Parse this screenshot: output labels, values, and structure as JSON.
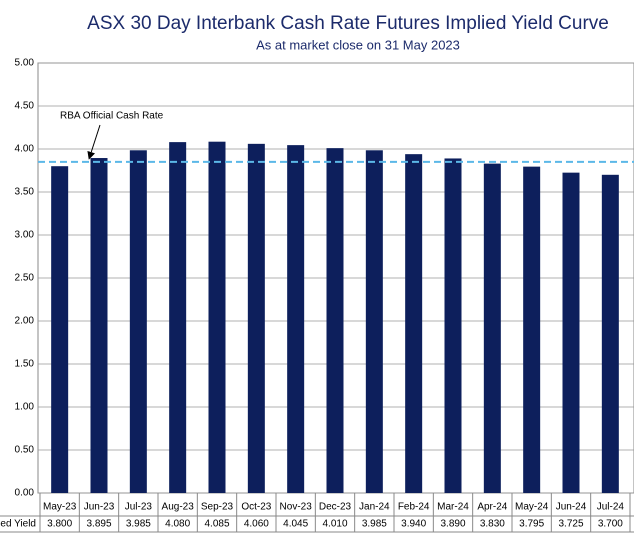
{
  "chart_data": {
    "type": "bar",
    "title": "ASX 30 Day Interbank Cash Rate Futures Implied Yield Curve",
    "subtitle": "As at market close on 31 May 2023",
    "categories": [
      "May-23",
      "Jun-23",
      "Jul-23",
      "Aug-23",
      "Sep-23",
      "Oct-23",
      "Nov-23",
      "Dec-23",
      "Jan-24",
      "Feb-24",
      "Mar-24",
      "Apr-24",
      "May-24",
      "Jun-24",
      "Jul-24"
    ],
    "series": [
      {
        "name": "Implied Yield",
        "color": "#0d1f5c",
        "values": [
          3.8,
          3.895,
          3.985,
          4.08,
          4.085,
          4.06,
          4.045,
          4.01,
          3.985,
          3.94,
          3.89,
          3.83,
          3.795,
          3.725,
          3.7
        ],
        "value_labels": [
          "3.800",
          "3.895",
          "3.985",
          "4.080",
          "4.085",
          "4.060",
          "4.045",
          "4.010",
          "3.985",
          "3.940",
          "3.890",
          "3.830",
          "3.795",
          "3.725",
          "3.700"
        ]
      }
    ],
    "reference_line": {
      "label": "RBA Official Cash Rate",
      "value": 3.85,
      "color": "#5bb8e8"
    },
    "ylim": [
      0,
      5
    ],
    "yticks": [
      {
        "value": 0,
        "label": "0.00"
      },
      {
        "value": 0.5,
        "label": "0.50"
      },
      {
        "value": 1,
        "label": "1.00"
      },
      {
        "value": 1.5,
        "label": "1.50"
      },
      {
        "value": 2,
        "label": "2.00"
      },
      {
        "value": 2.5,
        "label": "2.50"
      },
      {
        "value": 3,
        "label": "3.00"
      },
      {
        "value": 3.5,
        "label": "3.50"
      },
      {
        "value": 4,
        "label": "4.00"
      },
      {
        "value": 4.5,
        "label": "4.50"
      },
      {
        "value": 5,
        "label": "5.00"
      }
    ],
    "grid": true
  }
}
